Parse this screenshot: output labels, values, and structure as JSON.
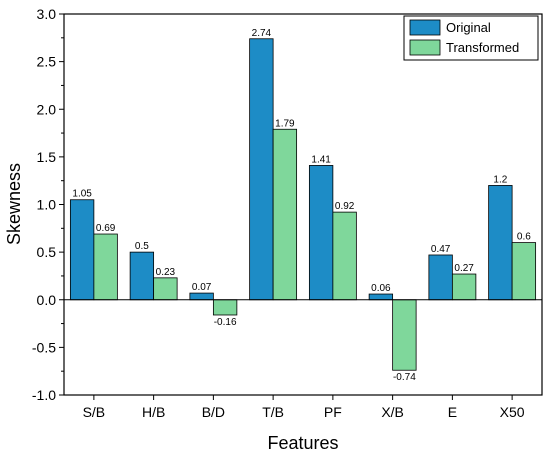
{
  "chart_data": {
    "type": "bar",
    "title": "",
    "xlabel": "Features",
    "ylabel": "Skewness",
    "categories": [
      "S/B",
      "H/B",
      "B/D",
      "T/B",
      "PF",
      "X/B",
      "E",
      "X50"
    ],
    "series": [
      {
        "name": "Original",
        "color": "#1D8CC6",
        "values": [
          1.05,
          0.5,
          0.07,
          2.74,
          1.41,
          0.06,
          0.47,
          1.2
        ],
        "labels": [
          "1.05",
          "0.5",
          "0.07",
          "2.74",
          "1.41",
          "0.06",
          "0.47",
          "1.2"
        ]
      },
      {
        "name": "Transformed",
        "color": "#7FD79B",
        "values": [
          0.69,
          0.23,
          -0.16,
          1.79,
          0.92,
          -0.74,
          0.27,
          0.6
        ],
        "labels": [
          "0.69",
          "0.23",
          "-0.16",
          "1.79",
          "0.92",
          "-0.74",
          "0.27",
          "0.6"
        ]
      }
    ],
    "ylim": [
      -1.0,
      3.0
    ],
    "yticks": [
      "-1.0",
      "-0.5",
      "0.0",
      "0.5",
      "1.0",
      "1.5",
      "2.0",
      "2.5",
      "3.0"
    ],
    "grid": false,
    "legend_position": "top-right"
  }
}
